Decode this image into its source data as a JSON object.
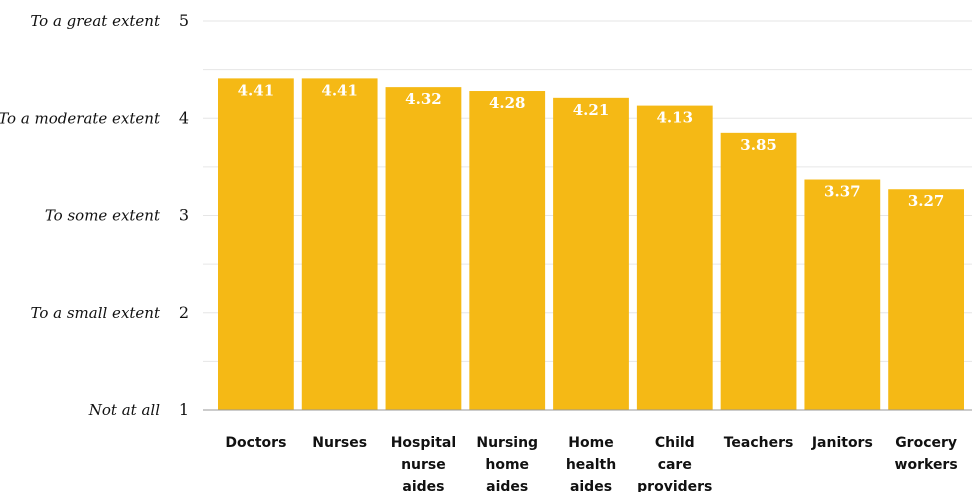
{
  "chart_data": {
    "type": "bar",
    "categories": [
      "Doctors",
      "Nurses",
      "Hospital nurse aides",
      "Nursing home aides",
      "Home health aides",
      "Child care providers",
      "Teachers",
      "Janitors",
      "Grocery workers"
    ],
    "values": [
      4.41,
      4.41,
      4.32,
      4.28,
      4.21,
      4.13,
      3.85,
      3.37,
      3.27
    ],
    "data_labels": [
      "4.41",
      "4.41",
      "4.32",
      "4.28",
      "4.21",
      "4.13",
      "3.85",
      "3.37",
      "3.27"
    ],
    "ylim": [
      1,
      5
    ],
    "yticks": [
      {
        "value": 5,
        "num": "5",
        "label": "To a great extent"
      },
      {
        "value": 4,
        "num": "4",
        "label": "To a moderate extent"
      },
      {
        "value": 3,
        "num": "3",
        "label": "To some extent"
      },
      {
        "value": 2,
        "num": "2",
        "label": "To a small extent"
      },
      {
        "value": 1,
        "num": "1",
        "label": "Not at all"
      }
    ],
    "grid": true,
    "colors": {
      "bar": "#F5B915",
      "grid": "#E6E6E6",
      "axis": "#999999",
      "label": "#FFFFFF"
    }
  }
}
